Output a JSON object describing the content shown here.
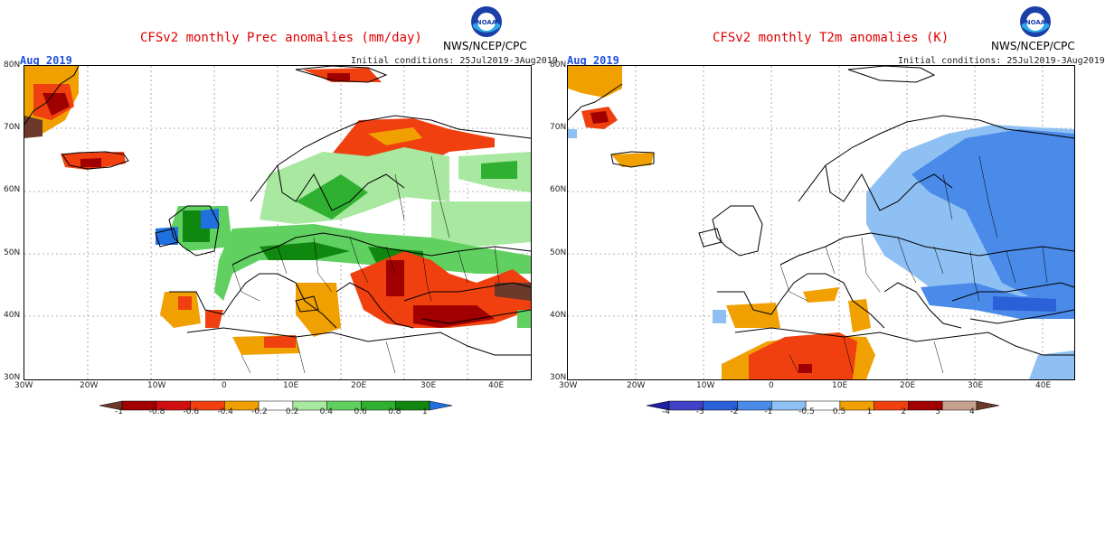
{
  "panels": [
    {
      "id": "prec",
      "title": "CFSv2 monthly Prec anomalies (mm/day)",
      "month": "Aug 2019",
      "agency": "NWS/NCEP/CPC",
      "logo_text": "NOAA",
      "initial_conditions": "Initial conditions: 25Jul2019-3Aug2019",
      "lat_labels": [
        "80N",
        "70N",
        "60N",
        "50N",
        "40N",
        "30N"
      ],
      "lon_labels": [
        "30W",
        "20W",
        "10W",
        "0",
        "10E",
        "20E",
        "30E",
        "40E"
      ],
      "colorbar": {
        "labels": [
          "-1",
          "-0.8",
          "-0.6",
          "-0.4",
          "-0.2",
          "0.2",
          "0.4",
          "0.6",
          "0.8",
          "1"
        ],
        "colors": [
          "#6b3a2a",
          "#a00000",
          "#d01010",
          "#f04010",
          "#f0a000",
          "#ffffff",
          "#a8e8a0",
          "#60d060",
          "#30b030",
          "#108810",
          "#2070e0"
        ]
      }
    },
    {
      "id": "t2m",
      "title": "CFSv2 monthly T2m anomalies (K)",
      "month": "Aug 2019",
      "agency": "NWS/NCEP/CPC",
      "logo_text": "NOAA",
      "initial_conditions": "Initial conditions: 25Jul2019-3Aug2019",
      "lat_labels": [
        "80N",
        "70N",
        "60N",
        "50N",
        "40N",
        "30N"
      ],
      "lon_labels": [
        "30W",
        "20W",
        "10W",
        "0",
        "10E",
        "20E",
        "30E",
        "40E"
      ],
      "colorbar": {
        "labels": [
          "-4",
          "-3",
          "-2",
          "-1",
          "-0.5",
          "0.5",
          "1",
          "2",
          "3",
          "4"
        ],
        "colors": [
          "#2020a0",
          "#4040c8",
          "#2a60d8",
          "#4a8ae8",
          "#8ec0f4",
          "#ffffff",
          "#f0a000",
          "#f04010",
          "#a00000",
          "#c8a090",
          "#6b3a2a"
        ]
      }
    }
  ]
}
